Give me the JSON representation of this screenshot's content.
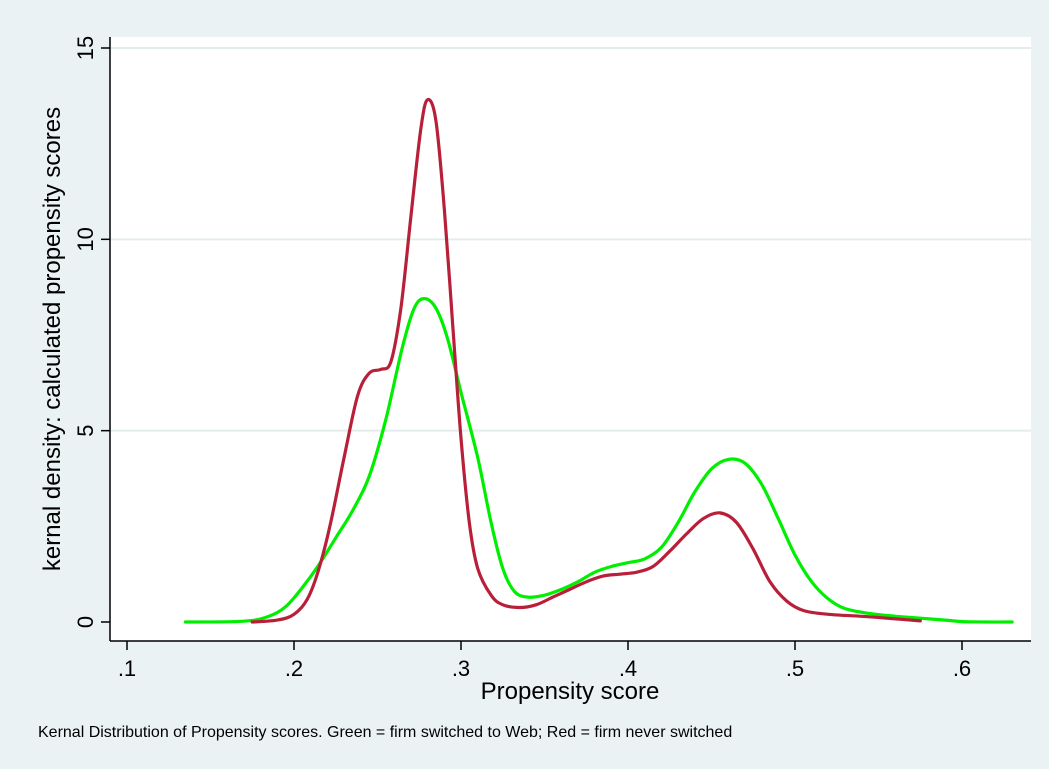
{
  "chart_data": {
    "type": "line",
    "xlabel": "Propensity score",
    "ylabel": "kernal density: calculated propensity scores",
    "note": "Kernal Distribution of Propensity scores.  Green = firm switched to Web;  Red = firm never switched",
    "xlim": [
      0.1,
      0.63
    ],
    "ylim": [
      0,
      15
    ],
    "x_ticks": [
      0.1,
      0.2,
      0.3,
      0.4,
      0.5,
      0.6
    ],
    "x_tick_labels": [
      ".1",
      ".2",
      ".3",
      ".4",
      ".5",
      ".6"
    ],
    "y_ticks": [
      0,
      5,
      10,
      15
    ],
    "y_tick_labels": [
      "0",
      "5",
      "10",
      "15"
    ],
    "grid": "horizontal",
    "series": [
      {
        "color": "#00ee00",
        "points": [
          [
            0.135,
            0
          ],
          [
            0.17,
            0.02
          ],
          [
            0.185,
            0.15
          ],
          [
            0.195,
            0.4
          ],
          [
            0.205,
            0.9
          ],
          [
            0.215,
            1.5
          ],
          [
            0.225,
            2.2
          ],
          [
            0.235,
            2.9
          ],
          [
            0.245,
            3.8
          ],
          [
            0.255,
            5.3
          ],
          [
            0.265,
            7.2
          ],
          [
            0.272,
            8.2
          ],
          [
            0.278,
            8.45
          ],
          [
            0.285,
            8.2
          ],
          [
            0.292,
            7.4
          ],
          [
            0.3,
            6.0
          ],
          [
            0.31,
            4.3
          ],
          [
            0.318,
            2.6
          ],
          [
            0.325,
            1.4
          ],
          [
            0.332,
            0.8
          ],
          [
            0.34,
            0.65
          ],
          [
            0.35,
            0.7
          ],
          [
            0.36,
            0.85
          ],
          [
            0.37,
            1.05
          ],
          [
            0.38,
            1.3
          ],
          [
            0.39,
            1.45
          ],
          [
            0.4,
            1.55
          ],
          [
            0.41,
            1.65
          ],
          [
            0.42,
            1.95
          ],
          [
            0.43,
            2.6
          ],
          [
            0.44,
            3.4
          ],
          [
            0.45,
            4.0
          ],
          [
            0.46,
            4.25
          ],
          [
            0.47,
            4.15
          ],
          [
            0.48,
            3.6
          ],
          [
            0.49,
            2.7
          ],
          [
            0.5,
            1.75
          ],
          [
            0.51,
            1.05
          ],
          [
            0.52,
            0.6
          ],
          [
            0.53,
            0.35
          ],
          [
            0.545,
            0.22
          ],
          [
            0.56,
            0.15
          ],
          [
            0.575,
            0.1
          ],
          [
            0.59,
            0.05
          ],
          [
            0.6,
            0.01
          ],
          [
            0.615,
            0
          ],
          [
            0.63,
            0
          ]
        ]
      },
      {
        "color": "#b8203a",
        "points": [
          [
            0.175,
            0
          ],
          [
            0.19,
            0.05
          ],
          [
            0.2,
            0.2
          ],
          [
            0.208,
            0.6
          ],
          [
            0.215,
            1.4
          ],
          [
            0.222,
            2.6
          ],
          [
            0.23,
            4.3
          ],
          [
            0.238,
            5.9
          ],
          [
            0.245,
            6.5
          ],
          [
            0.252,
            6.6
          ],
          [
            0.258,
            6.8
          ],
          [
            0.264,
            8.2
          ],
          [
            0.27,
            10.6
          ],
          [
            0.276,
            12.9
          ],
          [
            0.28,
            13.65
          ],
          [
            0.285,
            13.1
          ],
          [
            0.29,
            10.8
          ],
          [
            0.295,
            7.8
          ],
          [
            0.3,
            4.8
          ],
          [
            0.305,
            2.6
          ],
          [
            0.31,
            1.4
          ],
          [
            0.318,
            0.7
          ],
          [
            0.325,
            0.45
          ],
          [
            0.335,
            0.38
          ],
          [
            0.345,
            0.45
          ],
          [
            0.355,
            0.65
          ],
          [
            0.365,
            0.85
          ],
          [
            0.375,
            1.05
          ],
          [
            0.385,
            1.2
          ],
          [
            0.395,
            1.25
          ],
          [
            0.405,
            1.3
          ],
          [
            0.415,
            1.45
          ],
          [
            0.425,
            1.85
          ],
          [
            0.435,
            2.3
          ],
          [
            0.445,
            2.7
          ],
          [
            0.455,
            2.85
          ],
          [
            0.465,
            2.6
          ],
          [
            0.475,
            1.9
          ],
          [
            0.485,
            1.05
          ],
          [
            0.495,
            0.55
          ],
          [
            0.505,
            0.3
          ],
          [
            0.52,
            0.2
          ],
          [
            0.54,
            0.15
          ],
          [
            0.555,
            0.1
          ],
          [
            0.575,
            0.03
          ]
        ]
      }
    ]
  }
}
